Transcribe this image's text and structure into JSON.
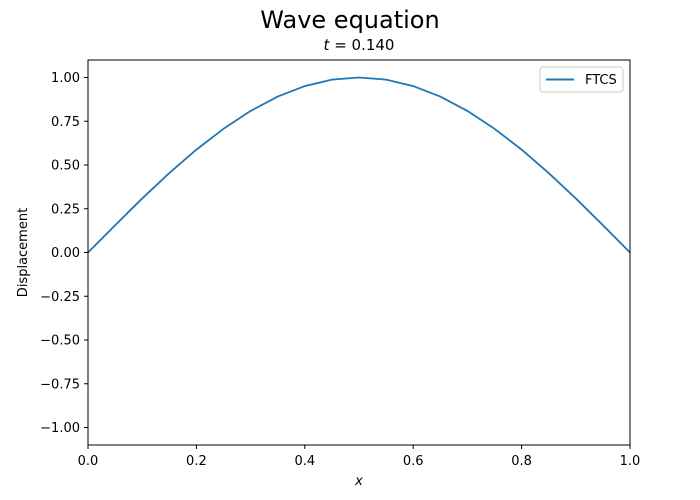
{
  "figure": {
    "suptitle": "Wave equation",
    "subtitle_var": "t",
    "subtitle_eq": " = 0.140"
  },
  "chart_data": {
    "type": "line",
    "title": "Wave equation",
    "subtitle": "t = 0.140",
    "xlabel": "x",
    "ylabel": "Displacement",
    "xlim": [
      0.0,
      1.0
    ],
    "ylim": [
      -1.1,
      1.1
    ],
    "xticks": [
      0.0,
      0.2,
      0.4,
      0.6,
      0.8,
      1.0
    ],
    "xtick_labels": [
      "0.0",
      "0.2",
      "0.4",
      "0.6",
      "0.8",
      "1.0"
    ],
    "yticks": [
      -1.0,
      -0.75,
      -0.5,
      -0.25,
      0.0,
      0.25,
      0.5,
      0.75,
      1.0
    ],
    "ytick_labels": [
      "−1.00",
      "−0.75",
      "−0.50",
      "−0.25",
      "0.00",
      "0.25",
      "0.50",
      "0.75",
      "1.00"
    ],
    "grid": false,
    "legend_position": "top-right",
    "series": [
      {
        "name": "FTCS",
        "color": "#1f77b4",
        "x": [
          0.0,
          0.05,
          0.1,
          0.15,
          0.2,
          0.25,
          0.3,
          0.35,
          0.4,
          0.45,
          0.5,
          0.55,
          0.6,
          0.65,
          0.7,
          0.75,
          0.8,
          0.85,
          0.9,
          0.95,
          1.0
        ],
        "y": [
          0.0,
          0.156,
          0.309,
          0.454,
          0.588,
          0.707,
          0.809,
          0.891,
          0.951,
          0.988,
          1.0,
          0.988,
          0.951,
          0.891,
          0.809,
          0.707,
          0.588,
          0.454,
          0.309,
          0.156,
          0.0
        ]
      }
    ]
  }
}
